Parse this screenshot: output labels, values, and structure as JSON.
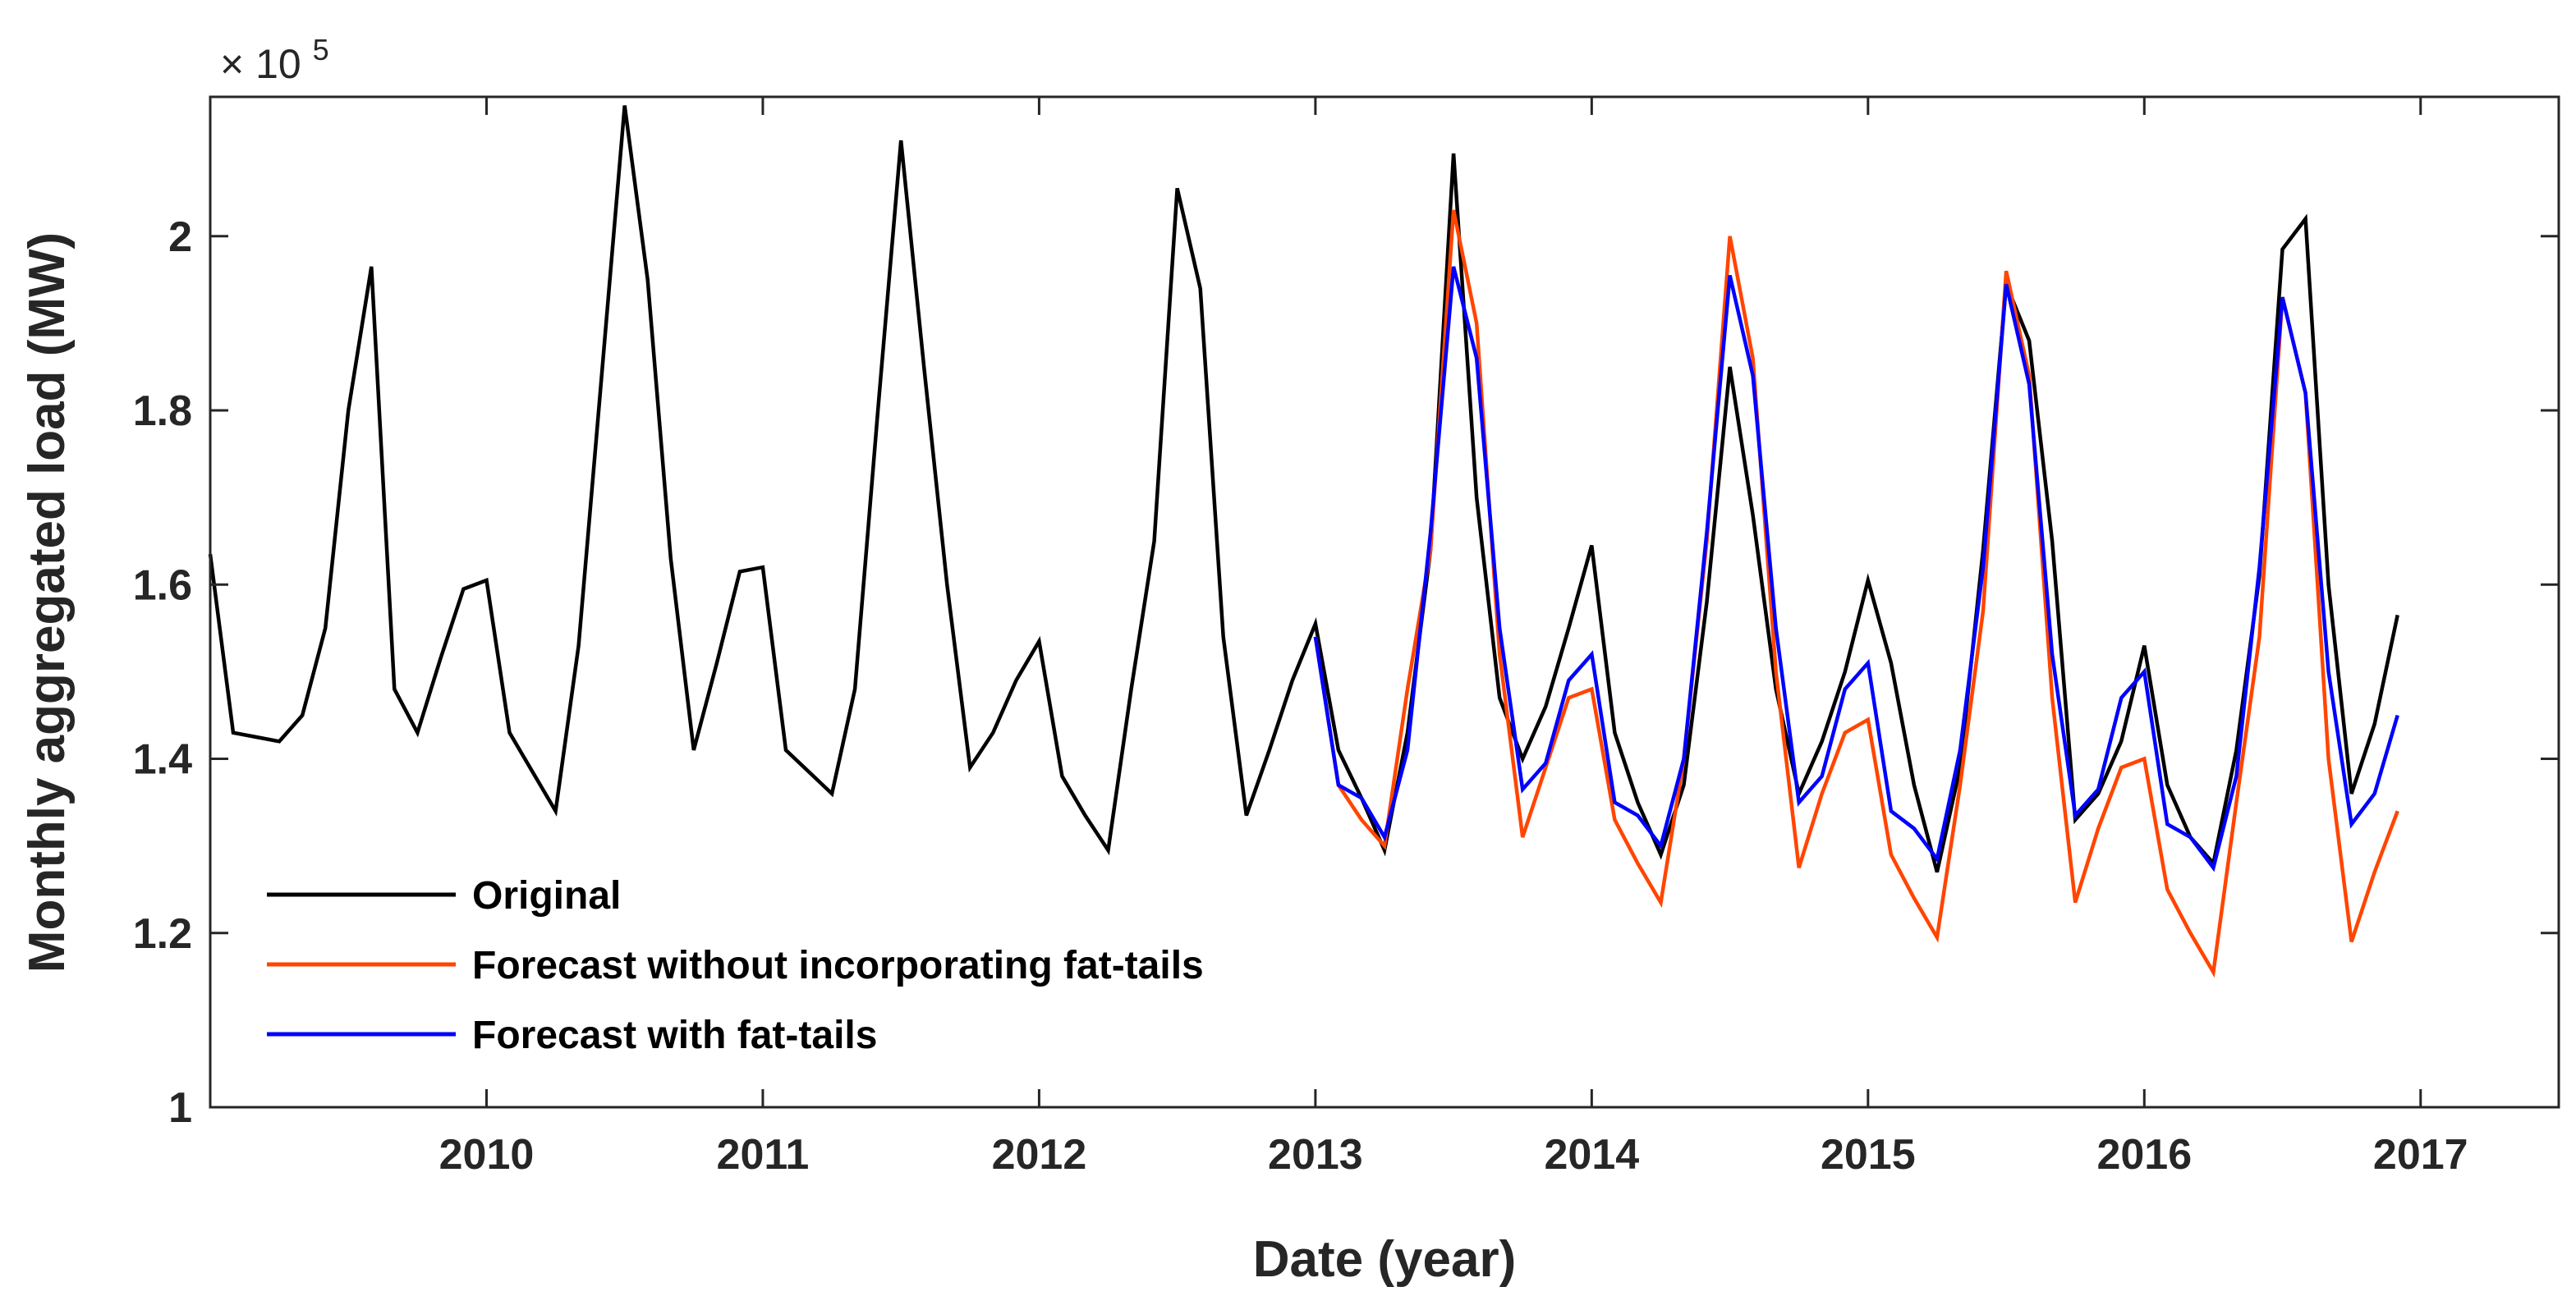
{
  "chart_data": {
    "type": "line",
    "title": "",
    "xlabel": "Date (year)",
    "ylabel": "Monthly aggregated load (MW)",
    "y_multiplier": {
      "base": "× 10",
      "exponent": "5"
    },
    "xlim": [
      2009.0,
      2017.5
    ],
    "ylim": [
      1.0,
      2.16
    ],
    "x_ticks": [
      2010,
      2011,
      2012,
      2013,
      2014,
      2015,
      2016,
      2017
    ],
    "x_tick_labels": [
      "2010",
      "2011",
      "2012",
      "2013",
      "2014",
      "2015",
      "2016",
      "2017"
    ],
    "y_ticks": [
      1.0,
      1.2,
      1.4,
      1.6,
      1.8,
      2.0
    ],
    "y_tick_labels": [
      "1",
      "1.2",
      "1.4",
      "1.6",
      "1.8",
      "2"
    ],
    "grid": false,
    "legend_position": "bottom-left",
    "series": [
      {
        "name": "Original",
        "color": "#000000",
        "start_year": 2009.0,
        "step": 0.083333,
        "values": [
          1.635,
          1.43,
          1.425,
          1.42,
          1.45,
          1.55,
          1.8,
          1.965,
          1.48,
          1.43,
          1.515,
          1.595,
          1.605,
          1.43,
          1.385,
          1.34,
          1.53,
          1.84,
          2.15,
          1.95,
          1.63,
          1.41,
          1.51,
          1.615,
          1.62,
          1.41,
          1.385,
          1.36,
          1.48,
          1.8,
          2.11,
          1.85,
          1.6,
          1.39,
          1.43,
          1.49,
          1.535,
          1.38,
          1.335,
          1.295,
          1.48,
          1.65,
          2.055,
          1.94,
          1.54,
          1.335,
          1.41,
          1.49,
          1.555,
          1.41,
          1.355,
          1.295,
          1.43,
          1.64,
          2.095,
          1.7,
          1.47,
          1.4,
          1.46,
          1.55,
          1.645,
          1.43,
          1.35,
          1.29,
          1.37,
          1.58,
          1.85,
          1.68,
          1.48,
          1.36,
          1.42,
          1.5,
          1.605,
          1.51,
          1.37,
          1.27,
          1.39,
          1.64,
          1.945,
          1.88,
          1.65,
          1.33,
          1.36,
          1.42,
          1.53,
          1.37,
          1.31,
          1.28,
          1.41,
          1.61,
          1.985,
          2.02,
          1.6,
          1.36,
          1.44,
          1.565
        ]
      },
      {
        "name": "Forecast without incorporating fat-tails",
        "color": "#FF4500",
        "start_year": 2013.0,
        "step": 0.083333,
        "values": [
          1.54,
          1.37,
          1.33,
          1.3,
          1.48,
          1.64,
          2.03,
          1.9,
          1.52,
          1.31,
          1.39,
          1.47,
          1.48,
          1.33,
          1.28,
          1.235,
          1.4,
          1.65,
          2.0,
          1.86,
          1.5,
          1.275,
          1.36,
          1.43,
          1.445,
          1.29,
          1.24,
          1.195,
          1.37,
          1.57,
          1.96,
          1.84,
          1.47,
          1.235,
          1.32,
          1.39,
          1.4,
          1.25,
          1.2,
          1.155,
          1.35,
          1.54,
          1.93,
          1.82,
          1.4,
          1.19,
          1.27,
          1.34
        ]
      },
      {
        "name": "Forecast with fat-tails",
        "color": "#0000FF",
        "start_year": 2013.0,
        "step": 0.083333,
        "values": [
          1.54,
          1.37,
          1.355,
          1.31,
          1.41,
          1.66,
          1.965,
          1.86,
          1.55,
          1.365,
          1.395,
          1.49,
          1.52,
          1.35,
          1.335,
          1.3,
          1.4,
          1.66,
          1.955,
          1.84,
          1.55,
          1.35,
          1.38,
          1.48,
          1.51,
          1.34,
          1.32,
          1.285,
          1.41,
          1.62,
          1.945,
          1.83,
          1.52,
          1.335,
          1.365,
          1.47,
          1.5,
          1.325,
          1.31,
          1.275,
          1.38,
          1.62,
          1.93,
          1.82,
          1.5,
          1.325,
          1.36,
          1.45
        ]
      }
    ]
  }
}
